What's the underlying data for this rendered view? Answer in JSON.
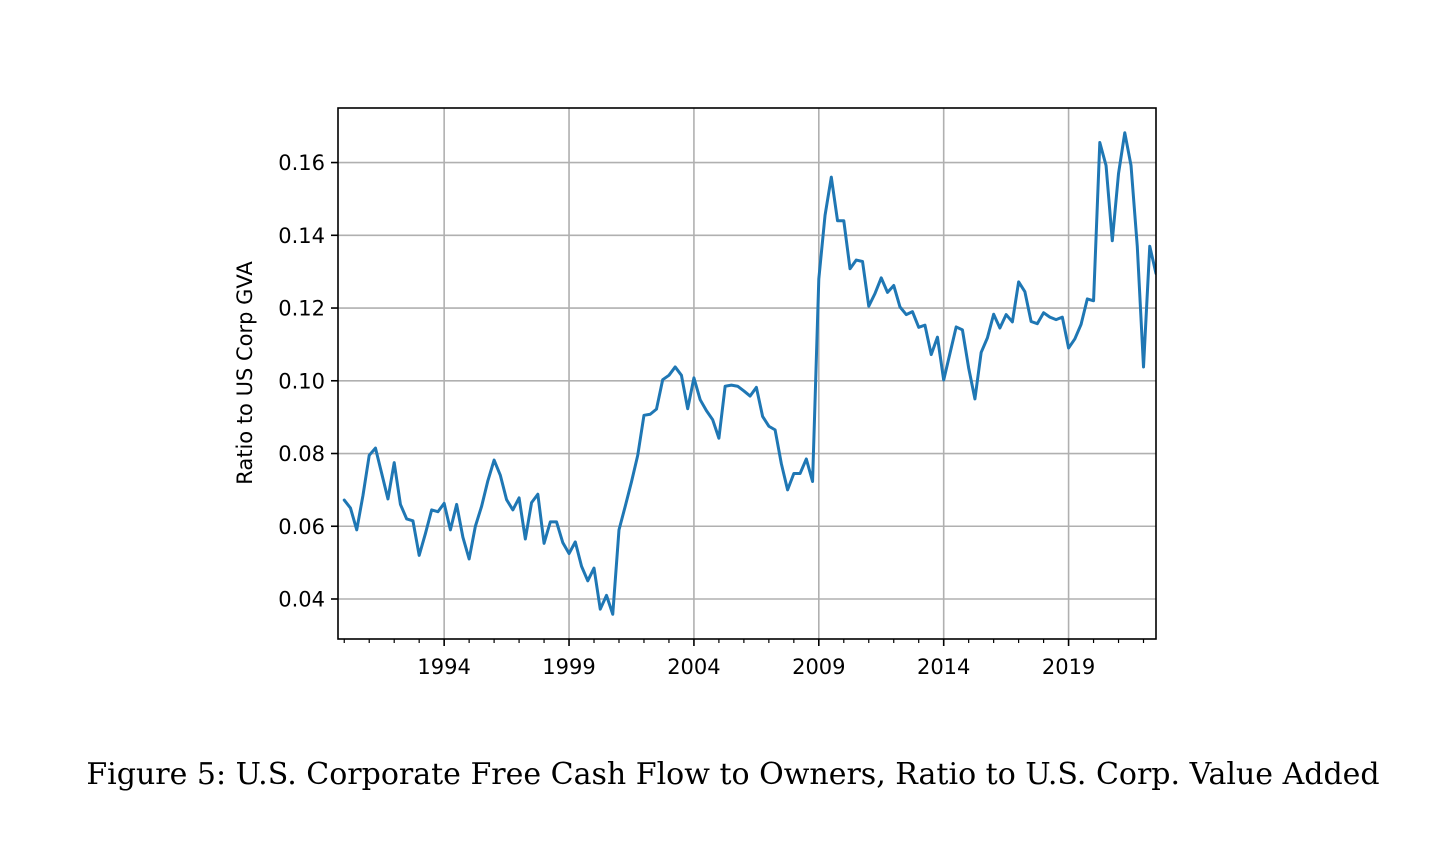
{
  "caption": "Figure 5: U.S. Corporate Free Cash Flow to Owners, Ratio to U.S. Corp. Value Added",
  "chart_data": {
    "type": "line",
    "title": "",
    "xlabel": "",
    "ylabel": "Ratio to US Corp GVA",
    "xlim": [
      1989.75,
      2022.5
    ],
    "ylim": [
      0.029,
      0.175
    ],
    "xticks": [
      1994,
      1999,
      2004,
      2009,
      2014,
      2019
    ],
    "xtick_labels": [
      "1994",
      "1999",
      "2004",
      "2009",
      "2014",
      "2019"
    ],
    "yticks": [
      0.04,
      0.06,
      0.08,
      0.1,
      0.12,
      0.14,
      0.16
    ],
    "ytick_labels": [
      "0.04",
      "0.06",
      "0.08",
      "0.10",
      "0.12",
      "0.14",
      "0.16"
    ],
    "grid": true,
    "line_color": "#1f77b4",
    "series": [
      {
        "x": [
          1990.0,
          1990.25,
          1990.5,
          1990.75,
          1991.0,
          1991.25,
          1991.5,
          1991.75,
          1992.0,
          1992.25,
          1992.5,
          1992.75,
          1993.0,
          1993.25,
          1993.5,
          1993.75,
          1994.0,
          1994.25,
          1994.5,
          1994.75,
          1995.0,
          1995.25,
          1995.5,
          1995.75,
          1996.0,
          1996.25,
          1996.5,
          1996.75,
          1997.0,
          1997.25,
          1997.5,
          1997.75,
          1998.0,
          1998.25,
          1998.5,
          1998.75,
          1999.0,
          1999.25,
          1999.5,
          1999.75,
          2000.0,
          2000.25,
          2000.5,
          2000.75,
          2001.0,
          2001.25,
          2001.5,
          2001.75,
          2002.0,
          2002.25,
          2002.5,
          2002.75,
          2003.0,
          2003.25,
          2003.5,
          2003.75,
          2004.0,
          2004.25,
          2004.5,
          2004.75,
          2005.0,
          2005.25,
          2005.5,
          2005.75,
          2006.0,
          2006.25,
          2006.5,
          2006.75,
          2007.0,
          2007.25,
          2007.5,
          2007.75,
          2008.0,
          2008.25,
          2008.5,
          2008.75,
          2009.0,
          2009.25,
          2009.5,
          2009.75,
          2010.0,
          2010.25,
          2010.5,
          2010.75,
          2011.0,
          2011.25,
          2011.5,
          2011.75,
          2012.0,
          2012.25,
          2012.5,
          2012.75,
          2013.0,
          2013.25,
          2013.5,
          2013.75,
          2014.0,
          2014.25,
          2014.5,
          2014.75,
          2015.0,
          2015.25,
          2015.5,
          2015.75,
          2016.0,
          2016.25,
          2016.5,
          2016.75,
          2017.0,
          2017.25,
          2017.5,
          2017.75,
          2018.0,
          2018.25,
          2018.5,
          2018.75,
          2019.0,
          2019.25,
          2019.5,
          2019.75,
          2020.0,
          2020.25,
          2020.5,
          2020.75,
          2021.0,
          2021.25,
          2021.5,
          2021.75,
          2022.0,
          2022.25,
          2022.5
        ],
        "y": [
          0.0672,
          0.065,
          0.059,
          0.0685,
          0.0795,
          0.0815,
          0.0745,
          0.0675,
          0.0775,
          0.066,
          0.062,
          0.0615,
          0.052,
          0.058,
          0.0645,
          0.064,
          0.0663,
          0.059,
          0.066,
          0.057,
          0.051,
          0.06,
          0.0655,
          0.0725,
          0.0782,
          0.074,
          0.0673,
          0.0645,
          0.0678,
          0.0565,
          0.0665,
          0.0688,
          0.0553,
          0.0612,
          0.0612,
          0.0555,
          0.0525,
          0.0557,
          0.049,
          0.045,
          0.0485,
          0.0372,
          0.041,
          0.0358,
          0.059,
          0.0655,
          0.0722,
          0.0795,
          0.0905,
          0.0908,
          0.0922,
          0.1003,
          0.1015,
          0.1038,
          0.1015,
          0.0923,
          0.1008,
          0.0948,
          0.0918,
          0.0893,
          0.0842,
          0.0985,
          0.0988,
          0.0985,
          0.0972,
          0.0958,
          0.0982,
          0.0902,
          0.0875,
          0.0865,
          0.0772,
          0.07,
          0.0745,
          0.0745,
          0.0785,
          0.0723,
          0.128,
          0.1455,
          0.156,
          0.144,
          0.144,
          0.1308,
          0.1332,
          0.1328,
          0.1205,
          0.124,
          0.1283,
          0.1243,
          0.1262,
          0.1203,
          0.1182,
          0.119,
          0.1147,
          0.1153,
          0.1072,
          0.112,
          0.1002,
          0.1075,
          0.1148,
          0.114,
          0.1035,
          0.095,
          0.1078,
          0.1118,
          0.1183,
          0.1145,
          0.1182,
          0.1162,
          0.1272,
          0.1245,
          0.1163,
          0.1157,
          0.1187,
          0.1175,
          0.1168,
          0.1175,
          0.109,
          0.1115,
          0.1155,
          0.1225,
          0.122,
          0.1655,
          0.1592,
          0.1385,
          0.157,
          0.1682,
          0.1592,
          0.137,
          0.1038,
          0.137,
          0.1295
        ]
      }
    ]
  }
}
